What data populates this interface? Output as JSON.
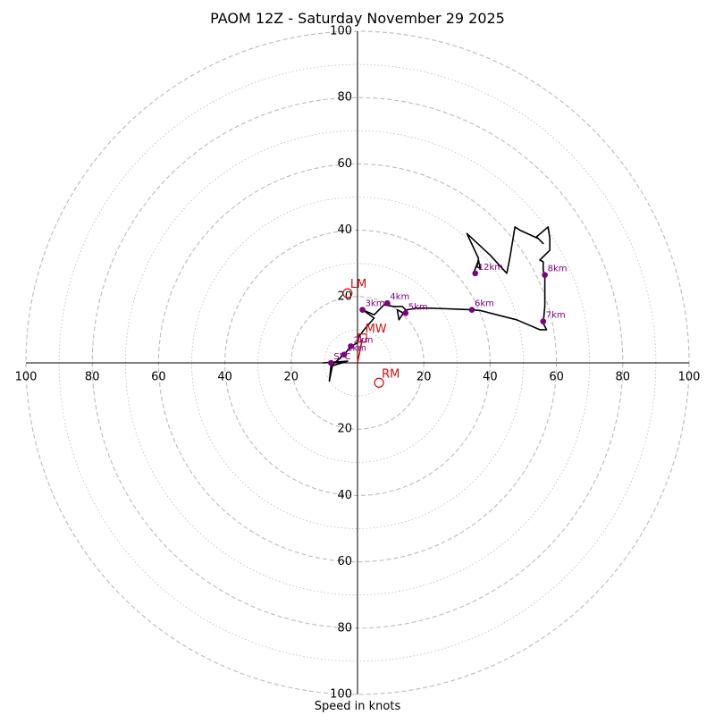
{
  "chart_data": {
    "type": "hodograph",
    "title": "PAOM 12Z - Saturday November 29 2025",
    "xlabel": "Speed in knots",
    "range": [
      -100,
      100
    ],
    "ring_major_step": 20,
    "ring_minor_step": 10,
    "tick_labels": [
      "20",
      "40",
      "60",
      "80",
      "100"
    ],
    "colors": {
      "trace": "#000000",
      "height_markers": "#800080",
      "motion": "#cc1111",
      "grid": "#bbbbbb"
    },
    "hodograph": [
      [
        -10.5,
        0
      ],
      [
        -3,
        0.5
      ],
      [
        -8,
        -1
      ],
      [
        -8.5,
        -5.5
      ],
      [
        -7.5,
        -0.5
      ],
      [
        -4,
        2.5
      ],
      [
        -2,
        5
      ],
      [
        0,
        6
      ],
      [
        0.5,
        8
      ],
      [
        2,
        10
      ],
      [
        5,
        13.5
      ],
      [
        1.5,
        16
      ],
      [
        5,
        14.5
      ],
      [
        8,
        17.5
      ],
      [
        11,
        17
      ],
      [
        13.5,
        17
      ],
      [
        14.5,
        16
      ],
      [
        12.5,
        13
      ],
      [
        12,
        16
      ],
      [
        14,
        15
      ],
      [
        15,
        16
      ],
      [
        18,
        16.5
      ],
      [
        20,
        16.5
      ],
      [
        22,
        16.5
      ],
      [
        27,
        16.3
      ],
      [
        34.5,
        16
      ],
      [
        37,
        15.8
      ],
      [
        42,
        14.5
      ],
      [
        48,
        13
      ],
      [
        55,
        10
      ],
      [
        57,
        10
      ],
      [
        56,
        12
      ],
      [
        56.5,
        17
      ],
      [
        56.5,
        22
      ],
      [
        56.5,
        26
      ],
      [
        56,
        28
      ],
      [
        56,
        30.5
      ],
      [
        55,
        31
      ],
      [
        58,
        34
      ],
      [
        58,
        37.5
      ],
      [
        57.5,
        41
      ],
      [
        54,
        38
      ],
      [
        56,
        36
      ],
      [
        54.5,
        37.5
      ],
      [
        49,
        40
      ],
      [
        47.5,
        41
      ],
      [
        46.5,
        35
      ],
      [
        46,
        32
      ],
      [
        45,
        27
      ],
      [
        40,
        32.5
      ],
      [
        33,
        39
      ],
      [
        36.5,
        31.5
      ],
      [
        36,
        29
      ],
      [
        37,
        28.5
      ],
      [
        36.5,
        31
      ],
      [
        35,
        27
      ]
    ],
    "height_points": [
      {
        "label": "SFC",
        "u": -8,
        "v": 0
      },
      {
        "label": "1km",
        "u": -4,
        "v": 2.5
      },
      {
        "label": "2km",
        "u": -2,
        "v": 5
      },
      {
        "label": "3km",
        "u": 1.5,
        "v": 16
      },
      {
        "label": "4km",
        "u": 9,
        "v": 18
      },
      {
        "label": "5km",
        "u": 14.5,
        "v": 15
      },
      {
        "label": "6km",
        "u": 34.5,
        "v": 16
      },
      {
        "label": "7km",
        "u": 56,
        "v": 12.5
      },
      {
        "label": "8km",
        "u": 56.5,
        "v": 26.5
      },
      {
        "label": "12km",
        "u": 35.5,
        "v": 27
      }
    ],
    "storm_motion": [
      {
        "label": "LM",
        "u": -3,
        "v": 21
      },
      {
        "label": "RM",
        "u": 6.5,
        "v": -6
      },
      {
        "label": "MW",
        "u": 1.5,
        "v": 7.5
      }
    ],
    "shear_vector": {
      "u": 1.5,
      "v": 7.5
    }
  }
}
